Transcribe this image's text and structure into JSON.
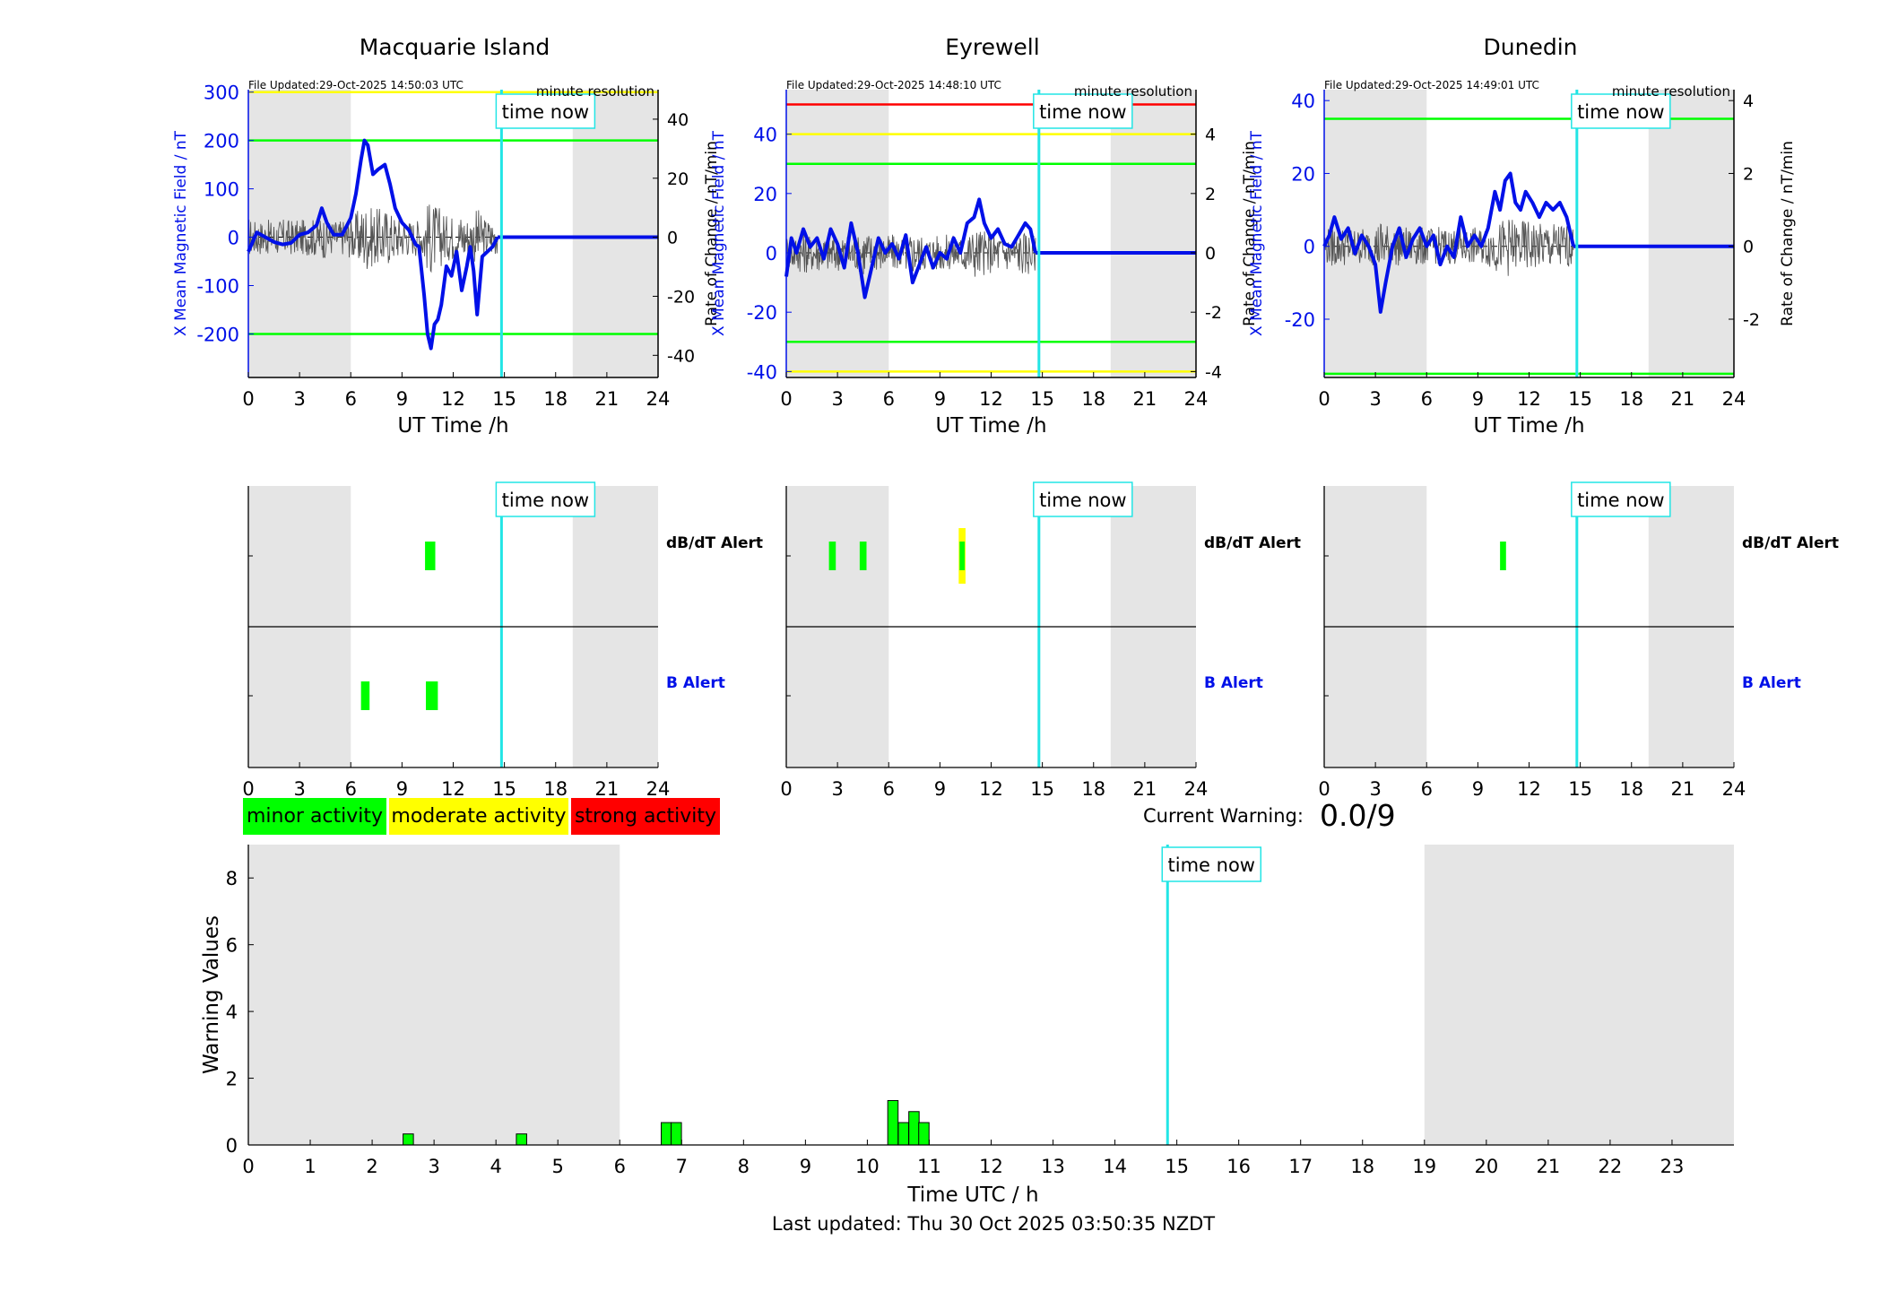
{
  "colors": {
    "night_shade": "#e5e5e5",
    "now_line": "#22e5e5",
    "field_line": "#0010e8",
    "rate_line": "#555555",
    "minor": "#00ff00",
    "moderate": "#ffff00",
    "strong": "#ff0000"
  },
  "common": {
    "time_now_label": "time now",
    "resolution_label": "minute resolution",
    "x_axis_label": "UT Time /h",
    "left_axis_label": "X Mean Magnetic Field / nT",
    "right_axis_label": "Rate of Change / nT/min",
    "dbdt_alert_label": "dB/dT Alert",
    "b_alert_label": "B Alert",
    "x_ticks": [
      0,
      3,
      6,
      9,
      12,
      15,
      18,
      21,
      24
    ]
  },
  "legend": {
    "minor": "minor activity",
    "moderate": "moderate activity",
    "strong": "strong activity"
  },
  "current_warning": {
    "label": "Current Warning:",
    "value": "0.0/9"
  },
  "footer": {
    "last_updated": "Last updated: Thu 30 Oct 2025 03:50:35 NZDT"
  },
  "chart_data": [
    {
      "type": "line",
      "title": "Macquarie Island",
      "file_updated": "File Updated:29-Oct-2025 14:50:03 UTC",
      "xlabel": "UT Time /h",
      "ylabel": "X Mean Magnetic Field / nT",
      "y2label": "Rate of Change / nT/min",
      "xlim": [
        0,
        24
      ],
      "ylim": [
        -290,
        305
      ],
      "y2lim": [
        -47.5,
        50
      ],
      "y_ticks": [
        -200,
        -100,
        0,
        100,
        200,
        300
      ],
      "y2_ticks": [
        -40,
        -20,
        0,
        20,
        40
      ],
      "night_shade": [
        [
          0,
          6
        ],
        [
          19,
          24
        ]
      ],
      "time_now": 14.83,
      "data_end": 14.6,
      "threshold_lines": [
        {
          "value": 300,
          "color": "#ffff00"
        },
        {
          "value": 200,
          "color": "#00ff00"
        },
        {
          "value": -200,
          "color": "#00ff00"
        }
      ],
      "series": [
        {
          "x": [
            0,
            0.5,
            1,
            1.5,
            2,
            2.5,
            3,
            3.5,
            4,
            4.3,
            4.6,
            5,
            5.5,
            6,
            6.3,
            6.6,
            6.8,
            7,
            7.3,
            7.6,
            8,
            8.3,
            8.6,
            9,
            9.4,
            9.8,
            10,
            10.3,
            10.5,
            10.7,
            10.9,
            11.1,
            11.3,
            11.6,
            11.9,
            12.2,
            12.5,
            12.8,
            13,
            13.2,
            13.4,
            13.7,
            14,
            14.3,
            14.6
          ],
          "y": [
            -30,
            10,
            0,
            -10,
            -15,
            -12,
            5,
            10,
            25,
            60,
            30,
            5,
            5,
            40,
            90,
            160,
            200,
            190,
            130,
            140,
            150,
            110,
            60,
            30,
            15,
            -15,
            -20,
            -120,
            -200,
            -230,
            -180,
            -170,
            -140,
            -60,
            -80,
            -30,
            -110,
            -60,
            -20,
            -70,
            -160,
            -40,
            -30,
            -20,
            0
          ]
        }
      ],
      "dbdt_alerts": [
        {
          "x0": 10.35,
          "x1": 10.95,
          "level": "minor"
        }
      ],
      "b_alerts": [
        {
          "x0": 6.6,
          "x1": 7.1,
          "level": "minor"
        },
        {
          "x0": 10.4,
          "x1": 11.1,
          "level": "minor"
        }
      ]
    },
    {
      "type": "line",
      "title": "Eyrewell",
      "file_updated": "File Updated:29-Oct-2025 14:48:10 UTC",
      "xlabel": "UT Time /h",
      "ylabel": "X Mean Magnetic Field / nT",
      "y2label": "Rate of Change / nT/min",
      "xlim": [
        0,
        24
      ],
      "ylim": [
        -42,
        55
      ],
      "y2lim": [
        -4.2,
        5.5
      ],
      "y_ticks": [
        -40,
        -20,
        0,
        20,
        40
      ],
      "y2_ticks": [
        -4,
        -2,
        0,
        2,
        4
      ],
      "night_shade": [
        [
          0,
          6
        ],
        [
          19,
          24
        ]
      ],
      "time_now": 14.8,
      "data_end": 14.6,
      "threshold_lines": [
        {
          "value": 50,
          "color": "#ff0000"
        },
        {
          "value": 40,
          "color": "#ffff00"
        },
        {
          "value": 30,
          "color": "#00ff00"
        },
        {
          "value": -30,
          "color": "#00ff00"
        },
        {
          "value": -40,
          "color": "#ffff00"
        }
      ],
      "series": [
        {
          "x": [
            0,
            0.3,
            0.6,
            1,
            1.4,
            1.8,
            2.2,
            2.6,
            3,
            3.4,
            3.8,
            4.2,
            4.6,
            5,
            5.4,
            5.8,
            6.2,
            6.6,
            7,
            7.4,
            7.8,
            8.2,
            8.6,
            9,
            9.4,
            9.8,
            10.2,
            10.6,
            11,
            11.3,
            11.6,
            12,
            12.4,
            12.8,
            13.2,
            13.6,
            14,
            14.3,
            14.6
          ],
          "y": [
            -8,
            5,
            0,
            8,
            2,
            5,
            -2,
            8,
            3,
            -5,
            10,
            0,
            -15,
            -5,
            5,
            0,
            3,
            -2,
            6,
            -10,
            -4,
            2,
            -5,
            0,
            -2,
            5,
            0,
            10,
            12,
            18,
            10,
            5,
            8,
            3,
            2,
            6,
            10,
            8,
            0
          ]
        }
      ],
      "dbdt_alerts": [
        {
          "x0": 2.5,
          "x1": 2.9,
          "level": "minor"
        },
        {
          "x0": 4.3,
          "x1": 4.7,
          "level": "minor"
        },
        {
          "x0": 10.1,
          "x1": 10.5,
          "level": "moderate"
        },
        {
          "x0": 10.15,
          "x1": 10.45,
          "level": "minor"
        }
      ],
      "b_alerts": []
    },
    {
      "type": "line",
      "title": "Dunedin",
      "file_updated": "File Updated:29-Oct-2025 14:49:01 UTC",
      "xlabel": "UT Time /h",
      "ylabel": "X Mean Magnetic Field / nT",
      "y2label": "Rate of Change / nT/min",
      "xlim": [
        0,
        24
      ],
      "ylim": [
        -36,
        43
      ],
      "y2lim": [
        -3.6,
        4.3
      ],
      "y_ticks": [
        -20,
        0,
        20,
        40
      ],
      "y2_ticks": [
        -2,
        0,
        2,
        4
      ],
      "night_shade": [
        [
          0,
          6
        ],
        [
          19,
          24
        ]
      ],
      "time_now": 14.8,
      "data_end": 14.6,
      "threshold_lines": [
        {
          "value": 35,
          "color": "#00ff00"
        },
        {
          "value": -35,
          "color": "#00ff00"
        }
      ],
      "series": [
        {
          "x": [
            0,
            0.3,
            0.6,
            1,
            1.4,
            1.8,
            2.2,
            2.6,
            3,
            3.3,
            3.6,
            4,
            4.4,
            4.8,
            5.2,
            5.6,
            6,
            6.4,
            6.8,
            7.2,
            7.6,
            8,
            8.4,
            8.8,
            9.2,
            9.6,
            10,
            10.3,
            10.6,
            10.9,
            11.2,
            11.5,
            11.8,
            12.2,
            12.6,
            13,
            13.4,
            13.8,
            14.2,
            14.6
          ],
          "y": [
            0,
            3,
            8,
            2,
            5,
            -2,
            3,
            0,
            -5,
            -18,
            -10,
            0,
            5,
            -3,
            2,
            5,
            0,
            3,
            -5,
            0,
            -3,
            8,
            0,
            3,
            0,
            5,
            15,
            10,
            18,
            20,
            12,
            10,
            15,
            12,
            8,
            12,
            10,
            12,
            8,
            0
          ]
        }
      ],
      "dbdt_alerts": [
        {
          "x0": 10.3,
          "x1": 10.65,
          "level": "minor"
        }
      ],
      "b_alerts": []
    },
    {
      "type": "bar",
      "xlabel": "Time UTC / h",
      "ylabel": "Warning Values",
      "xlim": [
        0,
        24
      ],
      "ylim": [
        0,
        9
      ],
      "x_ticks": [
        0,
        1,
        2,
        3,
        4,
        5,
        6,
        7,
        8,
        9,
        10,
        11,
        12,
        13,
        14,
        15,
        16,
        17,
        18,
        19,
        20,
        21,
        22,
        23
      ],
      "y_ticks": [
        0,
        2,
        4,
        6,
        8
      ],
      "night_shade": [
        [
          0,
          6
        ],
        [
          19,
          24
        ]
      ],
      "time_now": 14.85,
      "bar_width": 0.1667,
      "bars": [
        {
          "x": 2.5,
          "value": 0.33
        },
        {
          "x": 4.33,
          "value": 0.33
        },
        {
          "x": 6.67,
          "value": 0.67
        },
        {
          "x": 6.83,
          "value": 0.67
        },
        {
          "x": 10.33,
          "value": 1.33
        },
        {
          "x": 10.5,
          "value": 0.67
        },
        {
          "x": 10.67,
          "value": 1.0
        },
        {
          "x": 10.83,
          "value": 0.67
        }
      ]
    }
  ]
}
